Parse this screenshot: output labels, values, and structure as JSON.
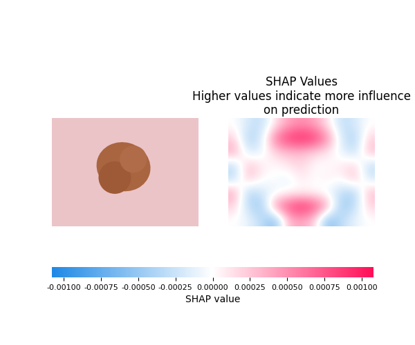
{
  "chart_data": {
    "type": "heatmap",
    "title": "SHAP Values\nHigher values indicate more influence on prediction",
    "values": [
      [
        0,
        -0.0002,
        -0.0003,
        0.0001,
        0.0004,
        0.0005,
        0.0004,
        0.0001,
        -0.0003,
        -0.0002,
        0
      ],
      [
        0.0002,
        -0.0004,
        -0.0002,
        0.0006,
        0.0009,
        0.001,
        0.0009,
        0.0005,
        -0.0002,
        -0.0004,
        0.0002
      ],
      [
        0.0004,
        -0.0002,
        -0.0001,
        0.0002,
        0.0003,
        0.0003,
        0.0002,
        0.0001,
        -0.0001,
        -0.0003,
        0.0003
      ],
      [
        -0.0003,
        0.0003,
        0.0001,
        0,
        0.0001,
        0.0002,
        0,
        0,
        0.0001,
        0.0002,
        -0.0003
      ],
      [
        -0.0003,
        0.0003,
        0,
        0,
        -0.0001,
        0.0001,
        0,
        0.0001,
        0,
        0.0003,
        -0.0002
      ],
      [
        0.0004,
        -0.0004,
        -0.0002,
        -0.0001,
        0,
        0,
        0,
        -0.0001,
        -0.0003,
        -0.0004,
        0.0003
      ],
      [
        0.0002,
        -0.0003,
        -0.0005,
        0.0005,
        0.0008,
        0.001,
        0.0008,
        0.0004,
        -0.0005,
        -0.0003,
        0.0002
      ],
      [
        0,
        -0.0001,
        -0.0003,
        -0.0006,
        0.0003,
        0.0004,
        0.0002,
        -0.0006,
        -0.0003,
        -0.0001,
        0
      ]
    ],
    "colorbar_label": "SHAP value",
    "colorbar_range": [
      -0.00108,
      0.00108
    ],
    "colorbar_ticks": [
      {
        "value": -0.001,
        "label": "-0.00100"
      },
      {
        "value": -0.00075,
        "label": "-0.00075"
      },
      {
        "value": -0.0005,
        "label": "-0.00050"
      },
      {
        "value": -0.00025,
        "label": "-0.00025"
      },
      {
        "value": 0.0,
        "label": "0.00000"
      },
      {
        "value": 0.00025,
        "label": "0.00025"
      },
      {
        "value": 0.0005,
        "label": "0.00050"
      },
      {
        "value": 0.00075,
        "label": "0.00075"
      },
      {
        "value": 0.001,
        "label": "0.00100"
      }
    ]
  }
}
